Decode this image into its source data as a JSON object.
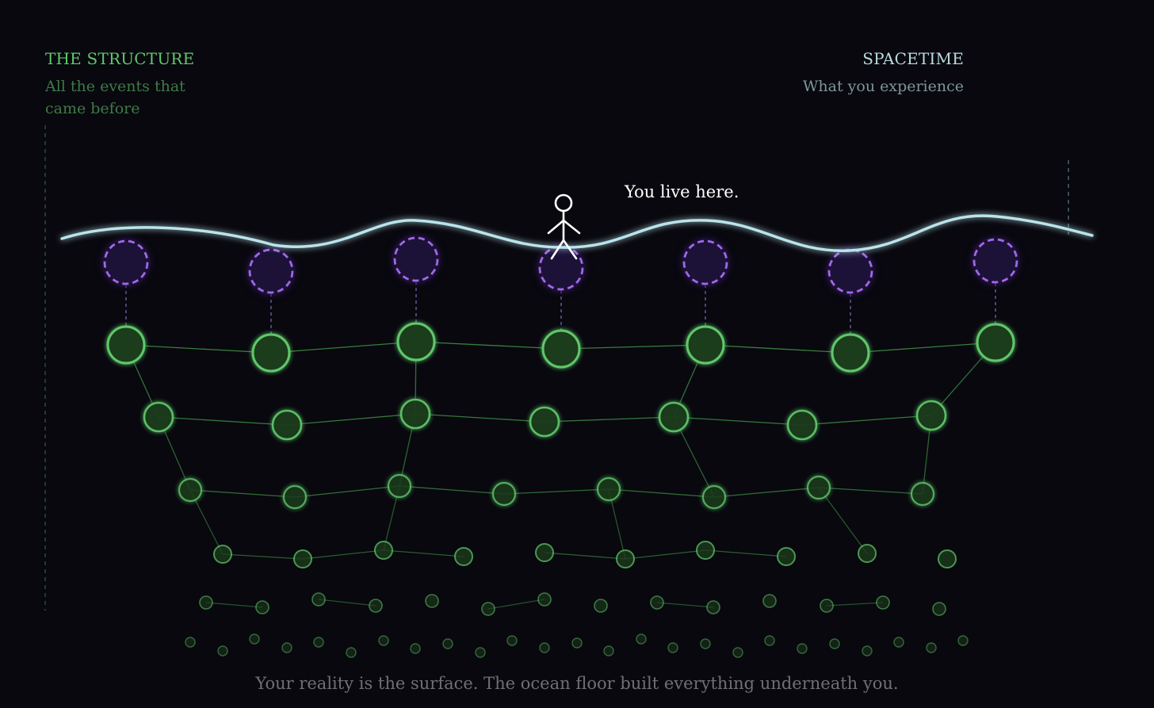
{
  "structure": {
    "title": "THE STRUCTURE",
    "subtitle": "All the events that came before"
  },
  "spacetime": {
    "title": "SPACETIME",
    "subtitle": "What you experience"
  },
  "observer": {
    "label": "You live here.",
    "icon": "stick-figure-icon"
  },
  "caption": "Your reality is the surface. The ocean floor built everything underneath you.",
  "colors": {
    "background": "#08080e",
    "structure_green": "#5fc86a",
    "node_fill": "#1e3d1c",
    "surface_wave": "#b9e4ea",
    "event_purple": "#a168e8",
    "event_fill": "#1c1238"
  },
  "diagram": {
    "surface_events": 7,
    "layers": [
      {
        "name": "layer-1",
        "node_count": 7
      },
      {
        "name": "layer-2",
        "node_count": 7
      },
      {
        "name": "layer-3",
        "node_count": 8
      },
      {
        "name": "layer-4",
        "node_count": 10
      },
      {
        "name": "layer-5",
        "node_count": 14
      },
      {
        "name": "layer-6",
        "node_count": 25
      }
    ]
  }
}
